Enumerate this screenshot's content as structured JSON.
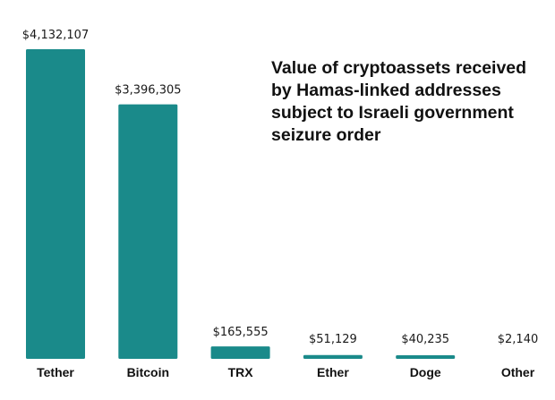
{
  "chart_data": {
    "type": "bar",
    "title": "Value of cryptoassets received by Hamas-linked addresses subject to Israeli government seizure order",
    "categories": [
      "Tether",
      "Bitcoin",
      "TRX",
      "Ether",
      "Doge",
      "Other"
    ],
    "values": [
      4132107,
      3396305,
      165555,
      51129,
      40235,
      2140
    ],
    "value_labels": [
      "$4,132,107",
      "$3,396,305",
      "$165,555",
      "$51,129",
      "$40,235",
      "$2,140"
    ],
    "ylim": [
      0,
      4132107
    ],
    "grid": false,
    "bar_color": "#1a8a8a"
  }
}
